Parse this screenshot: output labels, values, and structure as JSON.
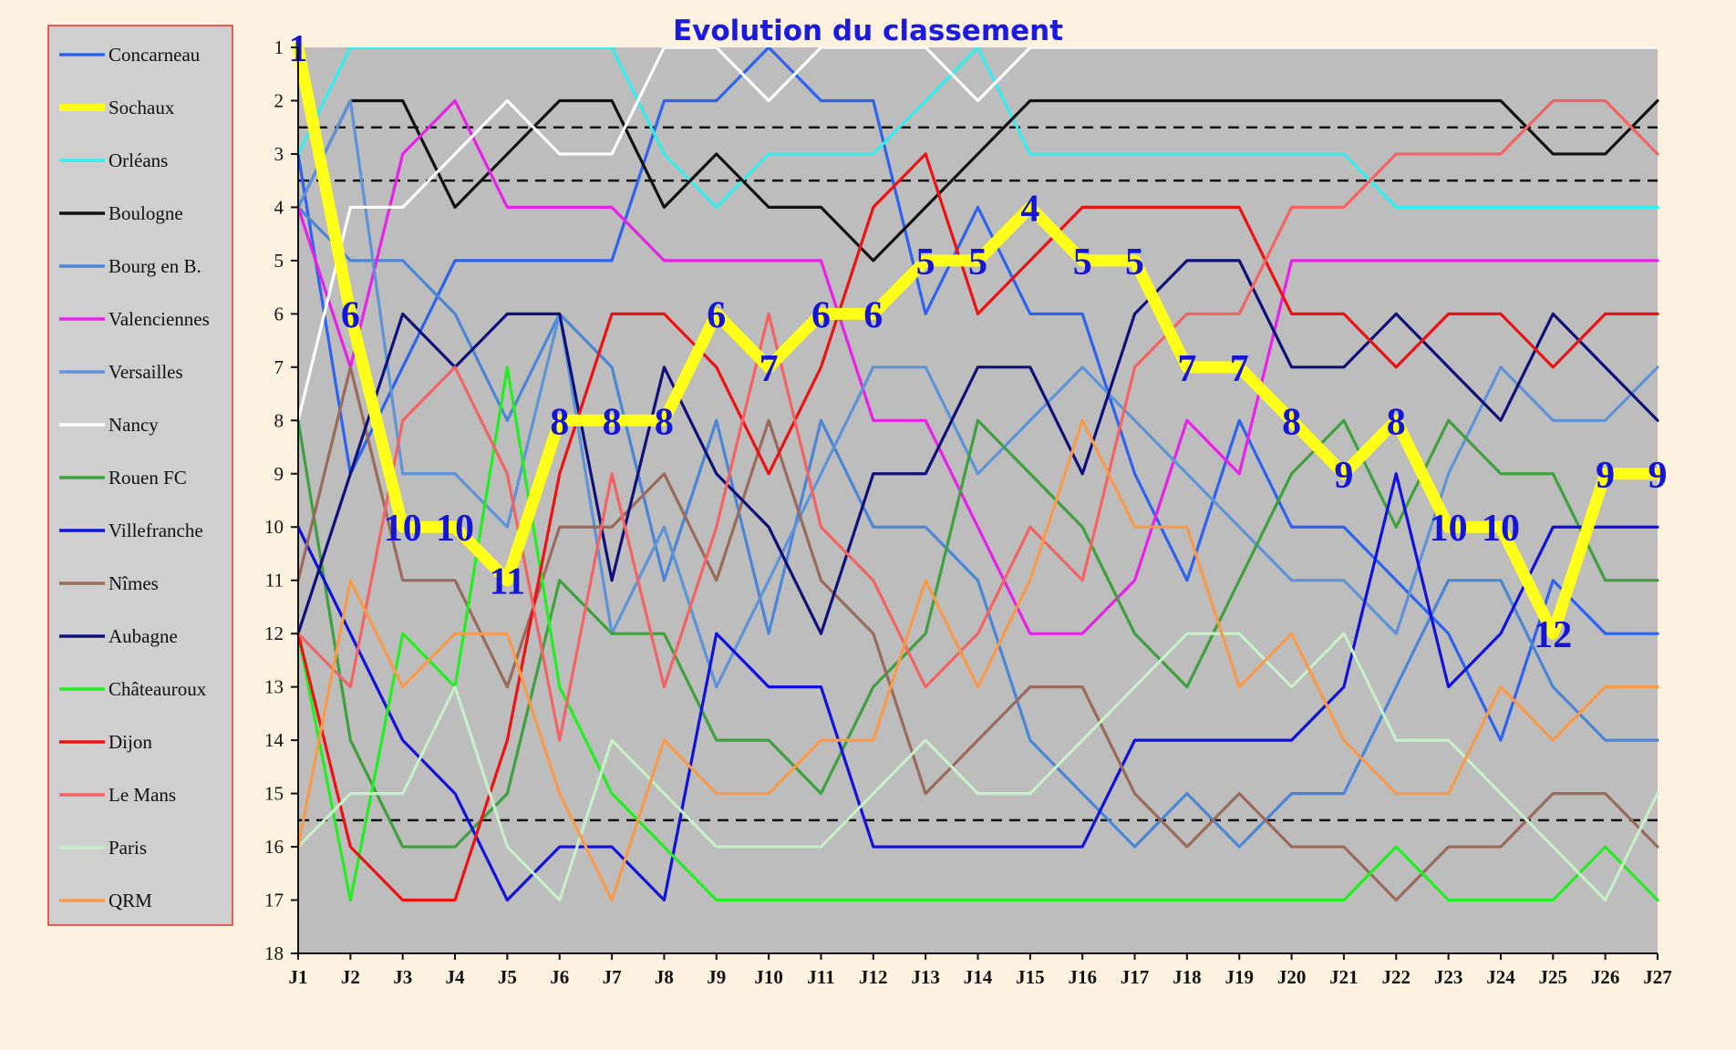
{
  "chart_data": {
    "type": "line",
    "title": "Evolution du classement",
    "xlabel": "",
    "ylabel": "",
    "categories": [
      "J1",
      "J2",
      "J3",
      "J4",
      "J5",
      "J6",
      "J7",
      "J8",
      "J9",
      "J10",
      "J11",
      "J12",
      "J13",
      "J14",
      "J15",
      "J16",
      "J17",
      "J18",
      "J19",
      "J20",
      "J21",
      "J22",
      "J23",
      "J24",
      "J25",
      "J26",
      "J27"
    ],
    "y_ticks": [
      1,
      2,
      3,
      4,
      5,
      6,
      7,
      8,
      9,
      10,
      11,
      12,
      13,
      14,
      15,
      16,
      17,
      18
    ],
    "ylim": [
      18,
      1
    ],
    "y_inverted": true,
    "legend_position": "left",
    "reference_lines": [
      2.5,
      3.5,
      15.5
    ],
    "highlight_series": "Sochaux",
    "series": [
      {
        "name": "Concarneau",
        "color": "#2d63ee",
        "values": [
          3,
          9,
          7,
          5,
          5,
          5,
          5,
          2,
          2,
          1,
          2,
          2,
          6,
          4,
          6,
          6,
          9,
          11,
          8,
          10,
          10,
          11,
          12,
          14,
          11,
          12,
          12
        ]
      },
      {
        "name": "Sochaux",
        "color": "#ffff1a",
        "values": [
          1,
          6,
          10,
          10,
          11,
          8,
          8,
          8,
          6,
          7,
          6,
          6,
          5,
          5,
          4,
          5,
          5,
          7,
          7,
          8,
          9,
          8,
          10,
          10,
          12,
          9,
          9
        ]
      },
      {
        "name": "Orléans",
        "color": "#33eeee",
        "values": [
          3,
          1,
          1,
          1,
          1,
          1,
          1,
          3,
          4,
          3,
          3,
          3,
          2,
          1,
          3,
          3,
          3,
          3,
          3,
          3,
          3,
          4,
          4,
          4,
          4,
          4,
          4
        ]
      },
      {
        "name": "Boulogne",
        "color": "#111111",
        "values": [
          4,
          2,
          2,
          4,
          3,
          2,
          2,
          4,
          3,
          4,
          4,
          5,
          4,
          3,
          2,
          2,
          2,
          2,
          2,
          2,
          2,
          2,
          2,
          2,
          3,
          3,
          2
        ]
      },
      {
        "name": "Bourg en B.",
        "color": "#4a86d8",
        "values": [
          4,
          5,
          5,
          6,
          8,
          6,
          7,
          11,
          8,
          12,
          8,
          10,
          10,
          11,
          14,
          15,
          16,
          15,
          16,
          15,
          15,
          13,
          11,
          11,
          13,
          14,
          14
        ]
      },
      {
        "name": "Valenciennes",
        "color": "#e820e8",
        "values": [
          4,
          7,
          3,
          2,
          4,
          4,
          4,
          5,
          5,
          5,
          5,
          8,
          8,
          10,
          12,
          12,
          11,
          8,
          9,
          5,
          5,
          5,
          5,
          5,
          5,
          5,
          5
        ]
      },
      {
        "name": "Versailles",
        "color": "#5f93d8",
        "values": [
          4,
          2,
          9,
          9,
          10,
          6,
          12,
          10,
          13,
          11,
          9,
          7,
          7,
          9,
          8,
          7,
          8,
          9,
          10,
          11,
          11,
          12,
          9,
          7,
          8,
          8,
          7
        ]
      },
      {
        "name": "Nancy",
        "color": "#ffffff",
        "values": [
          8,
          4,
          4,
          3,
          2,
          3,
          3,
          1,
          1,
          2,
          1,
          1,
          1,
          2,
          1,
          1,
          1,
          1,
          1,
          1,
          1,
          1,
          1,
          1,
          1,
          1,
          1
        ]
      },
      {
        "name": "Rouen FC",
        "color": "#3fa03f",
        "values": [
          8,
          14,
          16,
          16,
          15,
          11,
          12,
          12,
          14,
          14,
          15,
          13,
          12,
          8,
          9,
          10,
          12,
          13,
          11,
          9,
          8,
          10,
          8,
          9,
          9,
          11,
          11
        ]
      },
      {
        "name": "Villefranche",
        "color": "#1111dd",
        "values": [
          10,
          12,
          14,
          15,
          17,
          16,
          16,
          17,
          12,
          13,
          13,
          16,
          16,
          16,
          16,
          16,
          14,
          14,
          14,
          14,
          13,
          9,
          13,
          12,
          10,
          10,
          10
        ]
      },
      {
        "name": "Nîmes",
        "color": "#9a6a5a",
        "values": [
          11,
          7,
          11,
          11,
          13,
          10,
          10,
          9,
          11,
          8,
          11,
          12,
          15,
          14,
          13,
          13,
          15,
          16,
          15,
          16,
          16,
          17,
          16,
          16,
          15,
          15,
          16
        ]
      },
      {
        "name": "Aubagne",
        "color": "#10107a",
        "values": [
          12,
          9,
          6,
          7,
          6,
          6,
          11,
          7,
          9,
          10,
          12,
          9,
          9,
          7,
          7,
          9,
          6,
          5,
          5,
          7,
          7,
          6,
          7,
          8,
          6,
          7,
          8
        ]
      },
      {
        "name": "Châteauroux",
        "color": "#22ee22",
        "values": [
          12,
          17,
          12,
          13,
          7,
          13,
          15,
          16,
          17,
          17,
          17,
          17,
          17,
          17,
          17,
          17,
          17,
          17,
          17,
          17,
          17,
          16,
          17,
          17,
          17,
          16,
          17
        ]
      },
      {
        "name": "Dijon",
        "color": "#ee1111",
        "values": [
          12,
          16,
          17,
          17,
          14,
          9,
          6,
          6,
          7,
          9,
          7,
          4,
          3,
          6,
          5,
          4,
          4,
          4,
          4,
          6,
          6,
          7,
          6,
          6,
          7,
          6,
          6
        ]
      },
      {
        "name": "Le Mans",
        "color": "#f46363",
        "values": [
          12,
          13,
          8,
          7,
          9,
          14,
          9,
          13,
          10,
          6,
          10,
          11,
          13,
          12,
          10,
          11,
          7,
          6,
          6,
          4,
          4,
          3,
          3,
          3,
          2,
          2,
          3
        ]
      },
      {
        "name": "Paris",
        "color": "#c8f0c8",
        "values": [
          16,
          15,
          15,
          13,
          16,
          17,
          14,
          15,
          16,
          16,
          16,
          15,
          14,
          15,
          15,
          14,
          13,
          12,
          12,
          13,
          12,
          14,
          14,
          15,
          16,
          17,
          15
        ]
      },
      {
        "name": "QRM",
        "color": "#f89a4a",
        "values": [
          16,
          11,
          13,
          12,
          12,
          15,
          17,
          14,
          15,
          15,
          14,
          14,
          11,
          13,
          11,
          8,
          10,
          10,
          13,
          12,
          14,
          15,
          15,
          13,
          14,
          13,
          13
        ]
      }
    ],
    "rank_labels": [
      {
        "x": "J1",
        "text": "1"
      },
      {
        "x": "J2",
        "text": "6"
      },
      {
        "x": "J3",
        "text": "10"
      },
      {
        "x": "J4",
        "text": "10"
      },
      {
        "x": "J5",
        "text": "11"
      },
      {
        "x": "J6",
        "text": "8"
      },
      {
        "x": "J7",
        "text": "8"
      },
      {
        "x": "J8",
        "text": "8"
      },
      {
        "x": "J9",
        "text": "6"
      },
      {
        "x": "J10",
        "text": "7"
      },
      {
        "x": "J11",
        "text": "6"
      },
      {
        "x": "J12",
        "text": "6"
      },
      {
        "x": "J13",
        "text": "5"
      },
      {
        "x": "J14",
        "text": "5"
      },
      {
        "x": "J15",
        "text": "4"
      },
      {
        "x": "J16",
        "text": "5"
      },
      {
        "x": "J17",
        "text": "5"
      },
      {
        "x": "J18",
        "text": "7"
      },
      {
        "x": "J19",
        "text": "7"
      },
      {
        "x": "J20",
        "text": "8"
      },
      {
        "x": "J21",
        "text": "9"
      },
      {
        "x": "J22",
        "text": "8"
      },
      {
        "x": "J23",
        "text": "10"
      },
      {
        "x": "J24",
        "text": "10"
      },
      {
        "x": "J25",
        "text": "12"
      },
      {
        "x": "J26",
        "text": "9"
      },
      {
        "x": "J27",
        "text": "9"
      }
    ]
  }
}
